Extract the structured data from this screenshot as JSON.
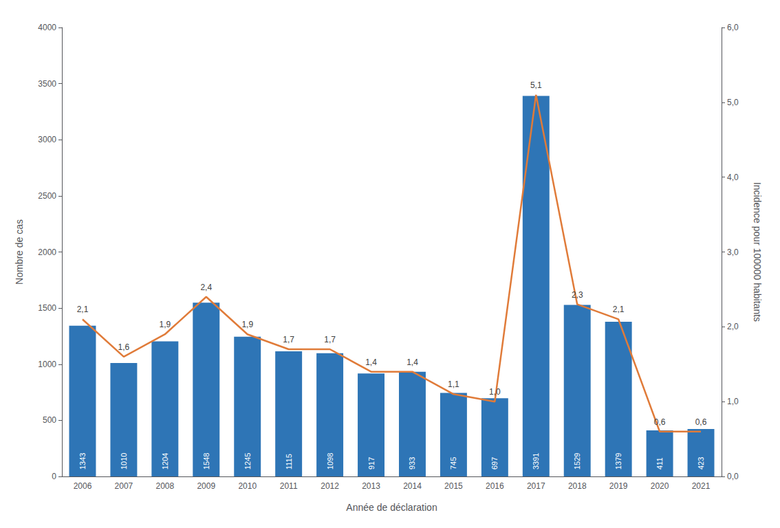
{
  "chart_data": {
    "type": "bar",
    "xlabel": "Année de déclaration",
    "ylabel": "Nombre de cas",
    "y2label": "Incidence pour 100000 habitants",
    "categories": [
      "2006",
      "2007",
      "2008",
      "2009",
      "2010",
      "2011",
      "2012",
      "2013",
      "2014",
      "2015",
      "2016",
      "2017",
      "2018",
      "2019",
      "2020",
      "2021"
    ],
    "series": [
      {
        "type": "bar",
        "color": "#2E75B6",
        "values": [
          1343,
          1010,
          1204,
          1548,
          1245,
          1115,
          1098,
          917,
          933,
          745,
          697,
          3391,
          1529,
          1379,
          411,
          423
        ]
      },
      {
        "type": "line",
        "axis": "y2",
        "color": "#E07B39",
        "values": [
          2.1,
          1.6,
          1.9,
          2.4,
          1.9,
          1.7,
          1.7,
          1.4,
          1.4,
          1.1,
          1.0,
          5.1,
          2.3,
          2.1,
          0.6,
          0.6
        ],
        "value_labels": [
          "2,1",
          "1,6",
          "1,9",
          "2,4",
          "1,9",
          "1,7",
          "1,7",
          "1,4",
          "1,4",
          "1,1",
          "1,0",
          "5,1",
          "2,3",
          "2,1",
          "0,6",
          "0,6"
        ]
      }
    ],
    "ylim": [
      0,
      4000
    ],
    "yticks": [
      0,
      500,
      1000,
      1500,
      2000,
      2500,
      3000,
      3500,
      4000
    ],
    "y2lim": [
      0.0,
      6.0
    ],
    "y2ticks": [
      {
        "value": 0.0,
        "label": "0,0"
      },
      {
        "value": 1.0,
        "label": "1,0"
      },
      {
        "value": 2.0,
        "label": "2,0"
      },
      {
        "value": 3.0,
        "label": "3,0"
      },
      {
        "value": 4.0,
        "label": "4,0"
      },
      {
        "value": 5.0,
        "label": "5,0"
      },
      {
        "value": 6.0,
        "label": "6,0"
      }
    ],
    "data_labels": true,
    "grid": false
  }
}
